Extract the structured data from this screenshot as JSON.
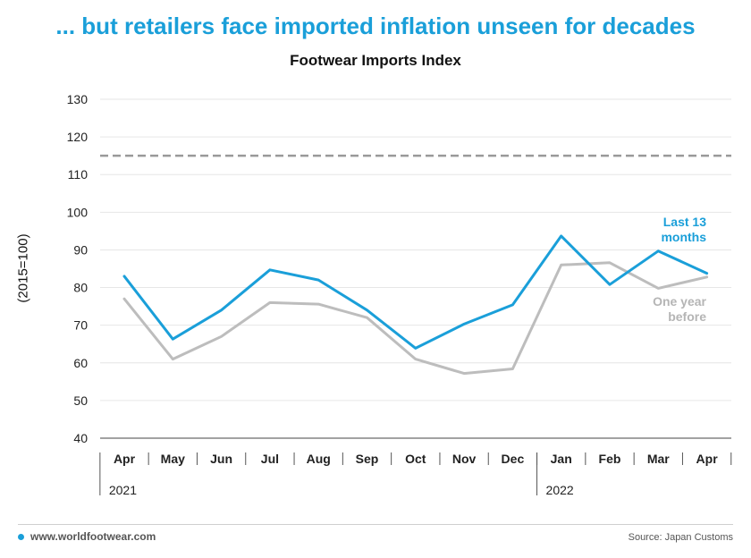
{
  "header": {
    "headline": "... but retailers face imported inflation unseen for decades"
  },
  "chart_data": {
    "type": "line",
    "title": "Footwear Imports Index",
    "ylabel": "(2015=100)",
    "xlabel": "",
    "ylim": [
      40,
      130
    ],
    "yticks": [
      40,
      50,
      60,
      70,
      80,
      90,
      100,
      110,
      120,
      130
    ],
    "categories": [
      "Apr",
      "May",
      "Jun",
      "Jul",
      "Aug",
      "Sep",
      "Oct",
      "Nov",
      "Dec",
      "Jan",
      "Feb",
      "Mar",
      "Apr"
    ],
    "year_labels": [
      {
        "label": "2021",
        "start_index": 0
      },
      {
        "label": "2022",
        "start_index": 9
      }
    ],
    "grid": true,
    "reference_line": {
      "value": 115,
      "style": "dashed",
      "color": "#999999"
    },
    "series": [
      {
        "name": "Last 13 months",
        "color": "#1a9fd9",
        "values": [
          83,
          66.3,
          74,
          84.7,
          82,
          74,
          63.9,
          70.3,
          75.4,
          93.7,
          80.8,
          89.7,
          83.8
        ]
      },
      {
        "name": "One year before",
        "color": "#bdbdbd",
        "values": [
          77,
          61,
          67,
          76,
          75.6,
          72,
          61,
          57.2,
          58.4,
          86,
          86.6,
          79.8,
          82.8
        ]
      }
    ]
  },
  "footer": {
    "website": "www.worldfootwear.com",
    "source": "Source: Japan Customs"
  },
  "colors": {
    "accent": "#1a9fd9",
    "secondary": "#bdbdbd",
    "grid": "#e6e6e6"
  }
}
